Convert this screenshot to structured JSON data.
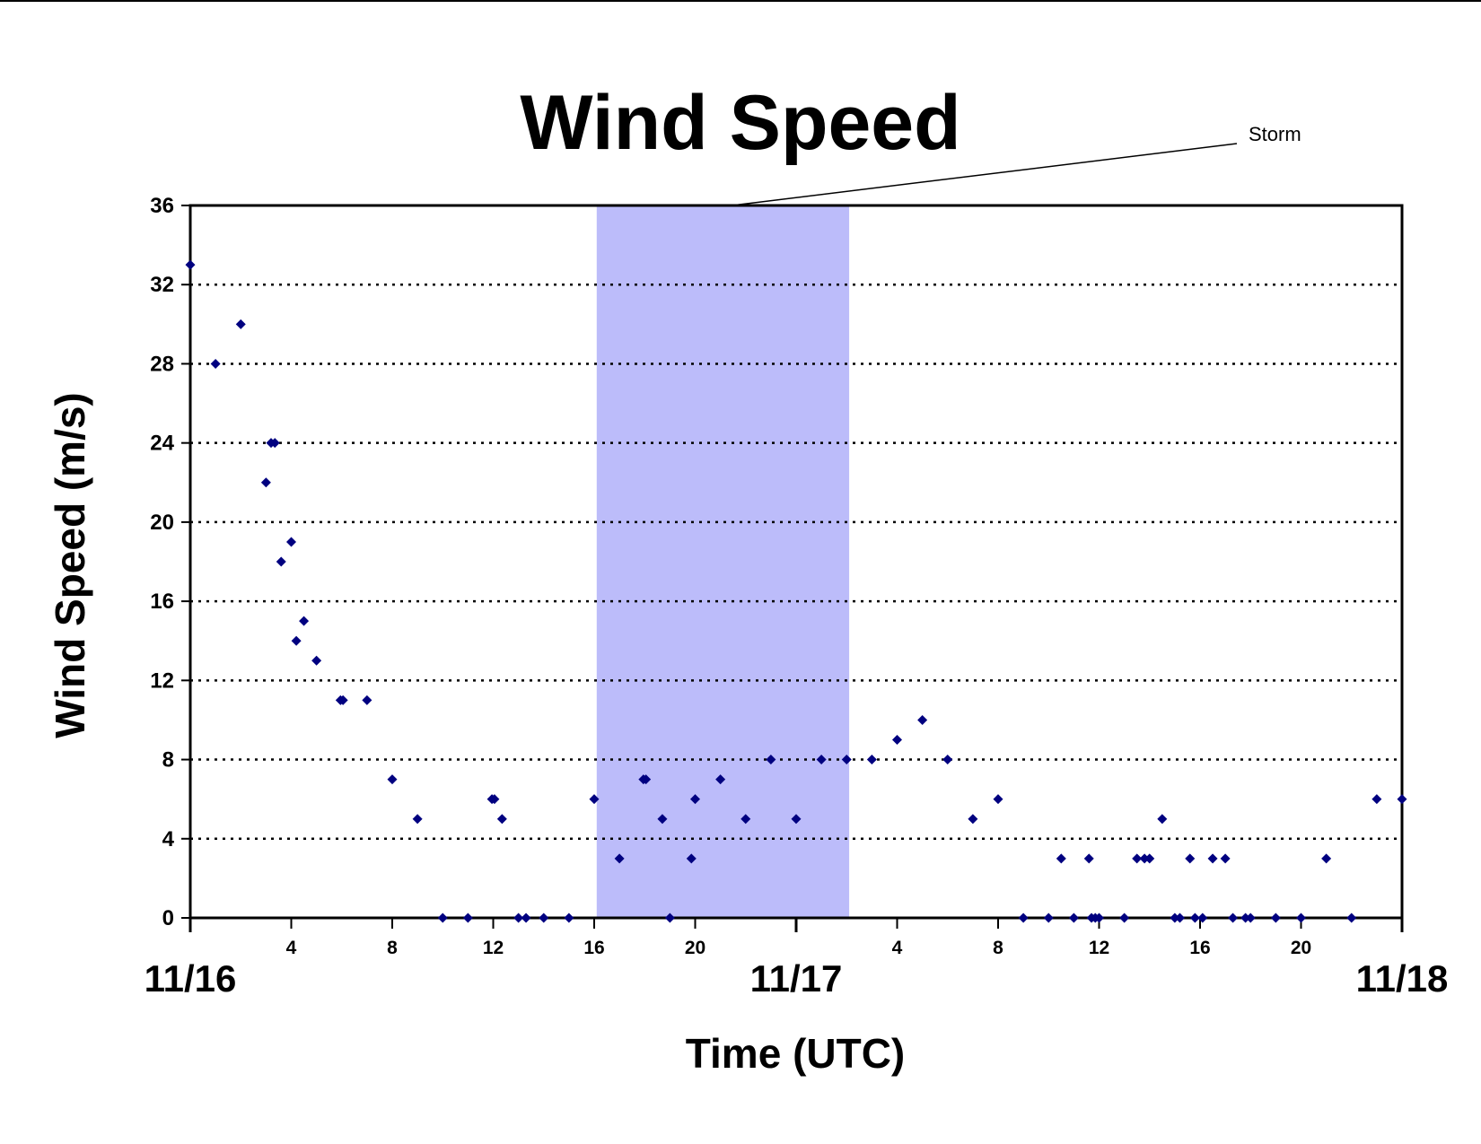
{
  "chart_data": {
    "type": "scatter",
    "title": "Wind Speed",
    "xlabel": "Time (UTC)",
    "ylabel": "Wind Speed (m/s)",
    "ylim": [
      0,
      36
    ],
    "xlim": [
      0,
      48
    ],
    "y_ticks": [
      "0",
      "4",
      "8",
      "12",
      "16",
      "20",
      "24",
      "28",
      "32",
      "36"
    ],
    "x_hour_ticks": [
      {
        "hour": 4,
        "label": "4"
      },
      {
        "hour": 8,
        "label": "8"
      },
      {
        "hour": 12,
        "label": "12"
      },
      {
        "hour": 16,
        "label": "16"
      },
      {
        "hour": 20,
        "label": "20"
      },
      {
        "hour": 28,
        "label": "4"
      },
      {
        "hour": 32,
        "label": "8"
      },
      {
        "hour": 36,
        "label": "12"
      },
      {
        "hour": 40,
        "label": "16"
      },
      {
        "hour": 44,
        "label": "20"
      }
    ],
    "x_day_labels": [
      {
        "hour": 0,
        "label": "11/16"
      },
      {
        "hour": 24,
        "label": "11/17"
      },
      {
        "hour": 48,
        "label": "11/18"
      }
    ],
    "grid": "horizontal dotted",
    "marker_color": "#000080",
    "shade_color": "#bcbcfa",
    "storm_shading": {
      "label": "Storm",
      "x_start": 16.1,
      "x_end": 26.1
    },
    "points": [
      {
        "x": 0.0,
        "y": 33
      },
      {
        "x": 1.0,
        "y": 28
      },
      {
        "x": 2.0,
        "y": 30
      },
      {
        "x": 3.0,
        "y": 22
      },
      {
        "x": 3.2,
        "y": 24
      },
      {
        "x": 3.35,
        "y": 24
      },
      {
        "x": 3.6,
        "y": 18
      },
      {
        "x": 4.0,
        "y": 19
      },
      {
        "x": 4.2,
        "y": 14
      },
      {
        "x": 4.5,
        "y": 15
      },
      {
        "x": 5.0,
        "y": 13
      },
      {
        "x": 5.95,
        "y": 11
      },
      {
        "x": 6.05,
        "y": 11
      },
      {
        "x": 7.0,
        "y": 11
      },
      {
        "x": 8.0,
        "y": 7
      },
      {
        "x": 9.0,
        "y": 5
      },
      {
        "x": 10.0,
        "y": 0
      },
      {
        "x": 11.0,
        "y": 0
      },
      {
        "x": 11.95,
        "y": 6
      },
      {
        "x": 12.05,
        "y": 6
      },
      {
        "x": 12.35,
        "y": 5
      },
      {
        "x": 13.0,
        "y": 0
      },
      {
        "x": 13.3,
        "y": 0
      },
      {
        "x": 14.0,
        "y": 0
      },
      {
        "x": 15.0,
        "y": 0
      },
      {
        "x": 16.0,
        "y": 6
      },
      {
        "x": 17.0,
        "y": 3
      },
      {
        "x": 17.95,
        "y": 7
      },
      {
        "x": 18.05,
        "y": 7
      },
      {
        "x": 18.7,
        "y": 5
      },
      {
        "x": 19.0,
        "y": 0
      },
      {
        "x": 19.85,
        "y": 3
      },
      {
        "x": 20.0,
        "y": 6
      },
      {
        "x": 21.0,
        "y": 7
      },
      {
        "x": 22.0,
        "y": 5
      },
      {
        "x": 23.0,
        "y": 8
      },
      {
        "x": 24.0,
        "y": 5
      },
      {
        "x": 25.0,
        "y": 8
      },
      {
        "x": 26.0,
        "y": 8
      },
      {
        "x": 27.0,
        "y": 8
      },
      {
        "x": 28.0,
        "y": 9
      },
      {
        "x": 29.0,
        "y": 10
      },
      {
        "x": 30.0,
        "y": 8
      },
      {
        "x": 31.0,
        "y": 5
      },
      {
        "x": 32.0,
        "y": 6
      },
      {
        "x": 33.0,
        "y": 0
      },
      {
        "x": 34.0,
        "y": 0
      },
      {
        "x": 34.5,
        "y": 3
      },
      {
        "x": 35.0,
        "y": 0
      },
      {
        "x": 35.6,
        "y": 3
      },
      {
        "x": 35.7,
        "y": 0
      },
      {
        "x": 35.85,
        "y": 0
      },
      {
        "x": 36.0,
        "y": 0
      },
      {
        "x": 37.0,
        "y": 0
      },
      {
        "x": 37.5,
        "y": 3
      },
      {
        "x": 37.8,
        "y": 3
      },
      {
        "x": 38.0,
        "y": 3
      },
      {
        "x": 38.5,
        "y": 5
      },
      {
        "x": 39.0,
        "y": 0
      },
      {
        "x": 39.2,
        "y": 0
      },
      {
        "x": 39.6,
        "y": 3
      },
      {
        "x": 39.8,
        "y": 0
      },
      {
        "x": 40.1,
        "y": 0
      },
      {
        "x": 40.5,
        "y": 3
      },
      {
        "x": 41.0,
        "y": 3
      },
      {
        "x": 41.3,
        "y": 0
      },
      {
        "x": 41.8,
        "y": 0
      },
      {
        "x": 42.0,
        "y": 0
      },
      {
        "x": 43.0,
        "y": 0
      },
      {
        "x": 44.0,
        "y": 0
      },
      {
        "x": 45.0,
        "y": 3
      },
      {
        "x": 46.0,
        "y": 0
      },
      {
        "x": 47.0,
        "y": 6
      },
      {
        "x": 48.0,
        "y": 6
      }
    ]
  }
}
